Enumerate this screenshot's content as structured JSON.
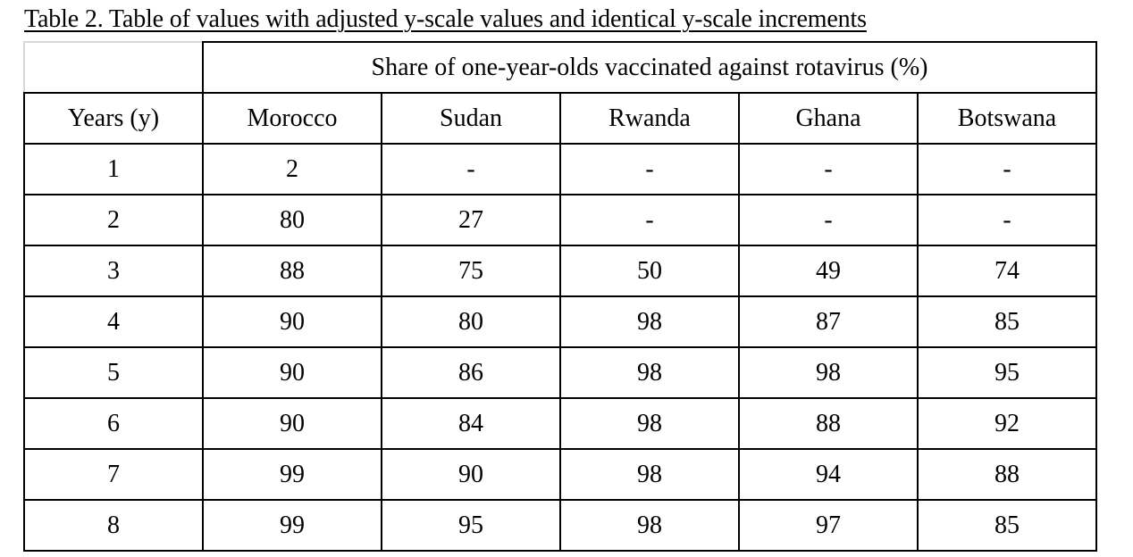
{
  "caption": "Table 2. Table of values with adjusted y-scale values and identical y-scale increments",
  "table": {
    "group_header": "Share of one-year-olds vaccinated against rotavirus (%)",
    "columns": [
      "Years (y)",
      "Morocco",
      "Sudan",
      "Rwanda",
      "Ghana",
      "Botswana"
    ],
    "rows": [
      [
        "1",
        "2",
        "-",
        "-",
        "-",
        "-"
      ],
      [
        "2",
        "80",
        "27",
        "-",
        "-",
        "-"
      ],
      [
        "3",
        "88",
        "75",
        "50",
        "49",
        "74"
      ],
      [
        "4",
        "90",
        "80",
        "98",
        "87",
        "85"
      ],
      [
        "5",
        "90",
        "86",
        "98",
        "98",
        "95"
      ],
      [
        "6",
        "90",
        "84",
        "98",
        "88",
        "92"
      ],
      [
        "7",
        "99",
        "90",
        "98",
        "94",
        "88"
      ],
      [
        "8",
        "99",
        "95",
        "98",
        "97",
        "85"
      ]
    ]
  }
}
